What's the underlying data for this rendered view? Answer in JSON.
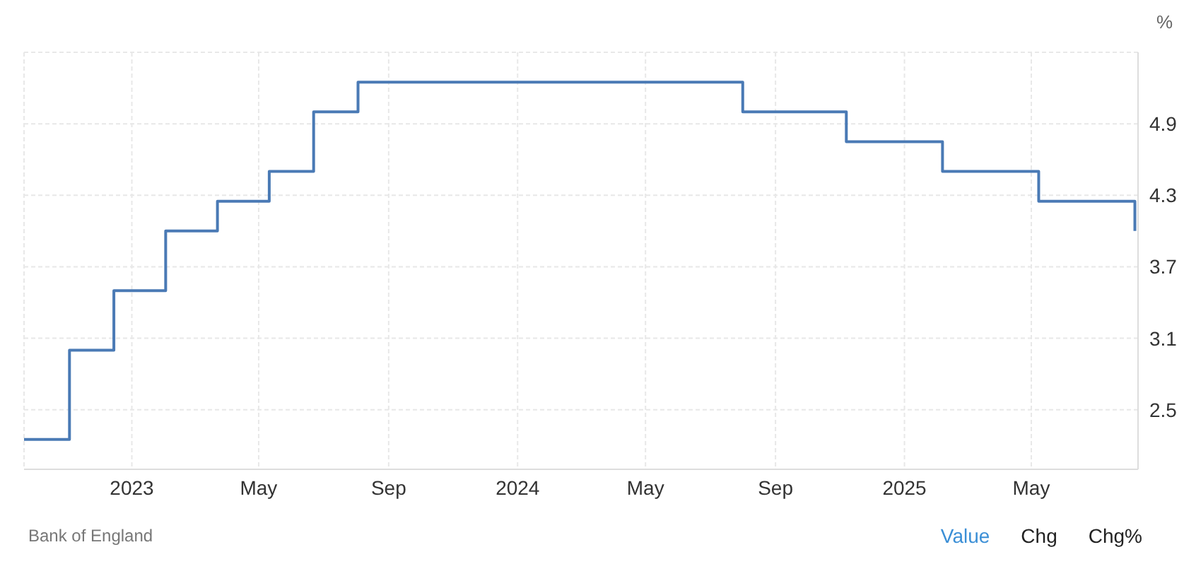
{
  "chart_data": {
    "type": "step",
    "ylabel": "%",
    "x": [
      "2022-09-21",
      "2022-11-03",
      "2022-12-15",
      "2023-02-02",
      "2023-03-23",
      "2023-05-11",
      "2023-06-22",
      "2023-08-03",
      "2024-08-01",
      "2024-11-07",
      "2025-02-06",
      "2025-05-08",
      "2025-08-07"
    ],
    "series": [
      {
        "color": "#4a7ab5",
        "values": [
          2.25,
          3.0,
          3.5,
          4.0,
          4.25,
          4.5,
          5.0,
          5.25,
          5.0,
          4.75,
          4.5,
          4.25,
          4.0
        ]
      }
    ],
    "xlim": [
      "2022-09-21",
      "2025-08-10"
    ],
    "xticks": [
      {
        "value": "2023-01-01",
        "label": "2023"
      },
      {
        "value": "2023-05-01",
        "label": "May"
      },
      {
        "value": "2023-09-01",
        "label": "Sep"
      },
      {
        "value": "2024-01-01",
        "label": "2024"
      },
      {
        "value": "2024-05-01",
        "label": "May"
      },
      {
        "value": "2024-09-01",
        "label": "Sep"
      },
      {
        "value": "2025-01-01",
        "label": "2025"
      },
      {
        "value": "2025-05-01",
        "label": "May"
      }
    ],
    "ylim": [
      2.0,
      5.5
    ],
    "yticks": [
      2.5,
      3.1,
      3.7,
      4.3,
      4.9
    ],
    "grid": true,
    "line_style": "solid",
    "marker": "none",
    "annotations": [
      "Bank of England",
      "Value",
      "Chg",
      "Chg%"
    ]
  }
}
